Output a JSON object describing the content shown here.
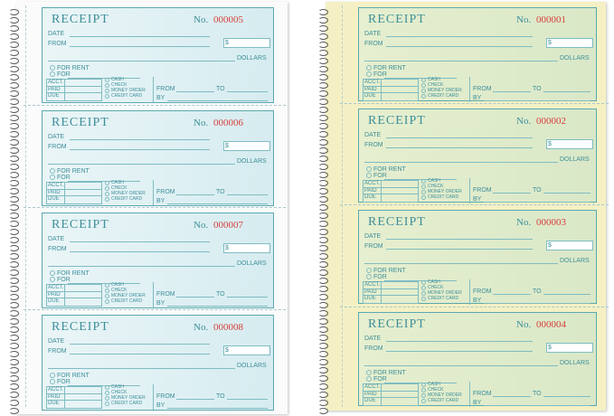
{
  "books": [
    {
      "receipts": [
        {
          "title": "RECEIPT",
          "no_label": "No.",
          "number": "000005",
          "date": "DATE",
          "from": "FROM",
          "dollar_sign": "$",
          "dollars": "DOLLARS",
          "for_rent": "FOR RENT",
          "for": "FOR",
          "acct": "ACCT.",
          "paid": "PAID",
          "due": "DUE",
          "cash": "CASH",
          "check": "CHECK",
          "money_order": "MONEY ORDER",
          "credit_card": "CREDIT CARD",
          "from2": "FROM",
          "to": "TO",
          "by": "BY"
        },
        {
          "title": "RECEIPT",
          "no_label": "No.",
          "number": "000006",
          "date": "DATE",
          "from": "FROM",
          "dollar_sign": "$",
          "dollars": "DOLLARS",
          "for_rent": "FOR RENT",
          "for": "FOR",
          "acct": "ACCT.",
          "paid": "PAID",
          "due": "DUE",
          "cash": "CASH",
          "check": "CHECK",
          "money_order": "MONEY ORDER",
          "credit_card": "CREDIT CARD",
          "from2": "FROM",
          "to": "TO",
          "by": "BY"
        },
        {
          "title": "RECEIPT",
          "no_label": "No.",
          "number": "000007",
          "date": "DATE",
          "from": "FROM",
          "dollar_sign": "$",
          "dollars": "DOLLARS",
          "for_rent": "FOR RENT",
          "for": "FOR",
          "acct": "ACCT.",
          "paid": "PAID",
          "due": "DUE",
          "cash": "CASH",
          "check": "CHECK",
          "money_order": "MONEY ORDER",
          "credit_card": "CREDIT CARD",
          "from2": "FROM",
          "to": "TO",
          "by": "BY"
        },
        {
          "title": "RECEIPT",
          "no_label": "No.",
          "number": "000008",
          "date": "DATE",
          "from": "FROM",
          "dollar_sign": "$",
          "dollars": "DOLLARS",
          "for_rent": "FOR RENT",
          "for": "FOR",
          "acct": "ACCT.",
          "paid": "PAID",
          "due": "DUE",
          "cash": "CASH",
          "check": "CHECK",
          "money_order": "MONEY ORDER",
          "credit_card": "CREDIT CARD",
          "from2": "FROM",
          "to": "TO",
          "by": "BY"
        }
      ]
    },
    {
      "receipts": [
        {
          "title": "RECEIPT",
          "no_label": "No.",
          "number": "000001",
          "date": "DATE",
          "from": "FROM",
          "dollar_sign": "$",
          "dollars": "DOLLARS",
          "for_rent": "FOR RENT",
          "for": "FOR",
          "acct": "ACCT.",
          "paid": "PAID",
          "due": "DUE",
          "cash": "CASH",
          "check": "CHECK",
          "money_order": "MONEY ORDER",
          "credit_card": "CREDIT CARD",
          "from2": "FROM",
          "to": "TO",
          "by": "BY"
        },
        {
          "title": "RECEIPT",
          "no_label": "No.",
          "number": "000002",
          "date": "DATE",
          "from": "FROM",
          "dollar_sign": "$",
          "dollars": "DOLLARS",
          "for_rent": "FOR RENT",
          "for": "FOR",
          "acct": "ACCT.",
          "paid": "PAID",
          "due": "DUE",
          "cash": "CASH",
          "check": "CHECK",
          "money_order": "MONEY ORDER",
          "credit_card": "CREDIT CARD",
          "from2": "FROM",
          "to": "TO",
          "by": "BY"
        },
        {
          "title": "RECEIPT",
          "no_label": "No.",
          "number": "000003",
          "date": "DATE",
          "from": "FROM",
          "dollar_sign": "$",
          "dollars": "DOLLARS",
          "for_rent": "FOR RENT",
          "for": "FOR",
          "acct": "ACCT.",
          "paid": "PAID",
          "due": "DUE",
          "cash": "CASH",
          "check": "CHECK",
          "money_order": "MONEY ORDER",
          "credit_card": "CREDIT CARD",
          "from2": "FROM",
          "to": "TO",
          "by": "BY"
        },
        {
          "title": "RECEIPT",
          "no_label": "No.",
          "number": "000004",
          "date": "DATE",
          "from": "FROM",
          "dollar_sign": "$",
          "dollars": "DOLLARS",
          "for_rent": "FOR RENT",
          "for": "FOR",
          "acct": "ACCT.",
          "paid": "PAID",
          "due": "DUE",
          "cash": "CASH",
          "check": "CHECK",
          "money_order": "MONEY ORDER",
          "credit_card": "CREDIT CARD",
          "from2": "FROM",
          "to": "TO",
          "by": "BY"
        }
      ]
    }
  ]
}
